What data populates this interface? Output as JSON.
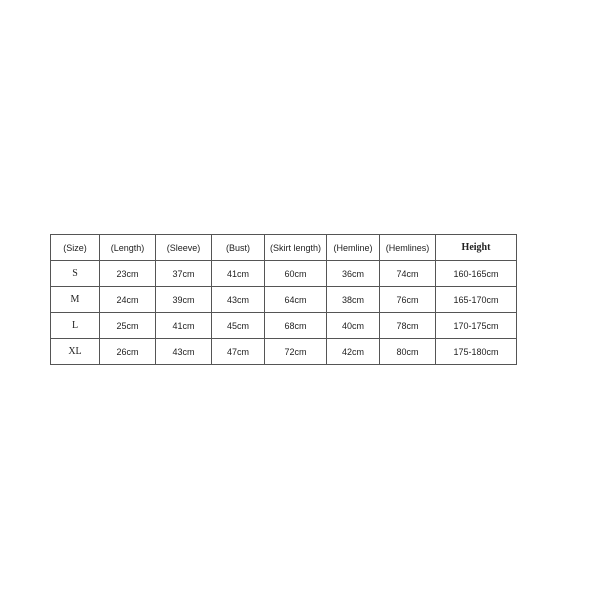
{
  "table": {
    "headers": [
      "(Size)",
      "(Length)",
      "(Sleeve)",
      "(Bust)",
      "(Skirt length)",
      "(Hemline)",
      "(Hemlines)",
      "Height"
    ],
    "rows": [
      [
        "S",
        "23cm",
        "37cm",
        "41cm",
        "60cm",
        "36cm",
        "74cm",
        "160-165cm"
      ],
      [
        "M",
        "24cm",
        "39cm",
        "43cm",
        "64cm",
        "38cm",
        "76cm",
        "165-170cm"
      ],
      [
        "L",
        "25cm",
        "41cm",
        "45cm",
        "68cm",
        "40cm",
        "78cm",
        "170-175cm"
      ],
      [
        "XL",
        "26cm",
        "43cm",
        "47cm",
        "72cm",
        "42cm",
        "80cm",
        "175-180cm"
      ]
    ]
  }
}
